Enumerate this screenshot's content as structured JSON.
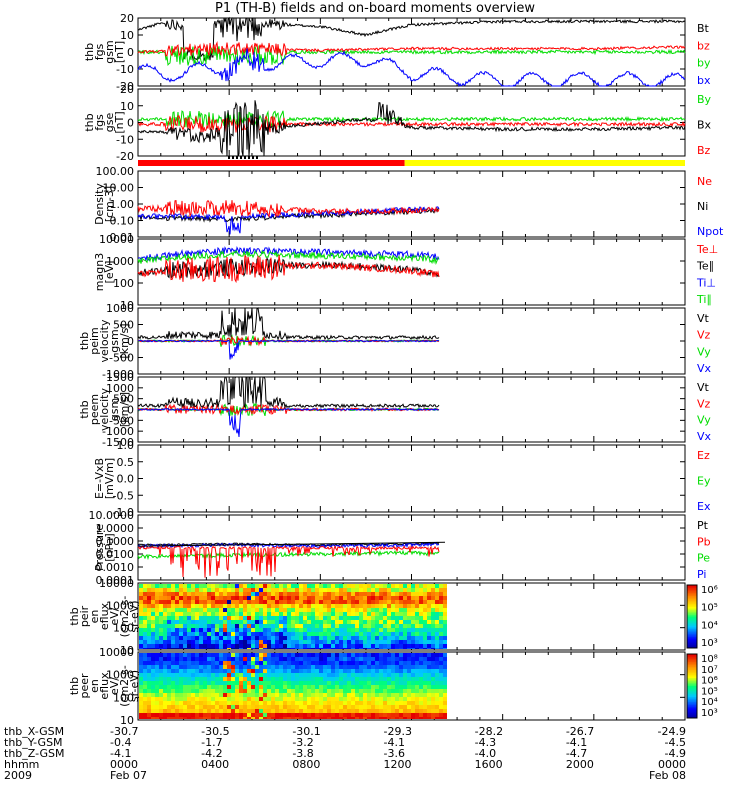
{
  "title": "P1 (TH-B) fields and on-board moments overview",
  "colors": {
    "black": "#000000",
    "red": "#ff0000",
    "green": "#00dd00",
    "blue": "#0000ff",
    "yellow": "#ffff00"
  },
  "panels": [
    {
      "ylabel": [
        "thb",
        "fgs",
        "gsm",
        "[nT]"
      ],
      "ticks": [
        "20",
        "10",
        "0",
        "-10",
        "-20"
      ],
      "log": false,
      "ymin": -20,
      "ymax": 20,
      "legend": [
        {
          "text": "Bt",
          "color": "black"
        },
        {
          "text": "bz",
          "color": "red"
        },
        {
          "text": "by",
          "color": "green"
        },
        {
          "text": "bx",
          "color": "blue"
        }
      ]
    },
    {
      "ylabel": [
        "thb",
        "fgs",
        "gse",
        "[nT]"
      ],
      "ticks": [
        "20",
        "10",
        "0",
        "-10",
        "-20"
      ],
      "log": false,
      "ymin": -20,
      "ymax": 20,
      "legend": [
        {
          "text": "By",
          "color": "green"
        },
        {
          "text": "Bx",
          "color": "black"
        },
        {
          "text": "Bz",
          "color": "red"
        }
      ]
    },
    {
      "ylabel": [
        "Density",
        "[cm-3]"
      ],
      "ticks": [
        "100.00",
        "10.00",
        "1.00",
        "0.10",
        "0.01"
      ],
      "log": true,
      "ymin": 0.01,
      "ymax": 100,
      "legend": [
        {
          "text": "Ne",
          "color": "red"
        },
        {
          "text": "Ni",
          "color": "black"
        },
        {
          "text": "Npot",
          "color": "blue"
        }
      ]
    },
    {
      "ylabel": [
        "magn3",
        "[eV]"
      ],
      "ticks": [
        "10000",
        "1000",
        "100",
        "10"
      ],
      "log": true,
      "ymin": 10,
      "ymax": 10000,
      "legend": [
        {
          "text": "Te⊥",
          "color": "red"
        },
        {
          "text": "Te∥",
          "color": "black"
        },
        {
          "text": "Ti⊥",
          "color": "blue"
        },
        {
          "text": "Ti∥",
          "color": "green"
        }
      ]
    },
    {
      "ylabel": [
        "thb",
        "peim",
        "velocity",
        "gsm",
        "[km/s]"
      ],
      "ticks": [
        "1000",
        "500",
        "0",
        "-500",
        "-1000"
      ],
      "log": false,
      "ymin": -1000,
      "ymax": 1000,
      "legend": [
        {
          "text": "Vt",
          "color": "black"
        },
        {
          "text": "Vz",
          "color": "red"
        },
        {
          "text": "Vy",
          "color": "green"
        },
        {
          "text": "Vx",
          "color": "blue"
        }
      ]
    },
    {
      "ylabel": [
        "thb",
        "peem",
        "velocity",
        "gsm",
        "[km/s]"
      ],
      "ticks": [
        "1500",
        "1000",
        "500",
        "0",
        "-500",
        "-1000",
        "-1500"
      ],
      "log": false,
      "ymin": -1500,
      "ymax": 1500,
      "legend": [
        {
          "text": "Vt",
          "color": "black"
        },
        {
          "text": "Vz",
          "color": "red"
        },
        {
          "text": "Vy",
          "color": "green"
        },
        {
          "text": "Vx",
          "color": "blue"
        }
      ]
    },
    {
      "ylabel": [
        "E=-VxB",
        "[mV/m]"
      ],
      "ticks": [
        "1.0",
        "0.5",
        "0.0",
        "-0.5",
        "-1.0"
      ],
      "log": false,
      "ymin": -1,
      "ymax": 1,
      "legend": [
        {
          "text": "Ez",
          "color": "red"
        },
        {
          "text": "Ey",
          "color": "green"
        },
        {
          "text": "Ex",
          "color": "blue"
        }
      ]
    },
    {
      "ylabel": [
        "Pressure",
        "[nPa]"
      ],
      "ticks": [
        "10.0000",
        "1.0000",
        "0.1000",
        "0.0100",
        "0.0010",
        "0.0001"
      ],
      "log": true,
      "ymin": 0.0001,
      "ymax": 10,
      "legend": [
        {
          "text": "Pt",
          "color": "black"
        },
        {
          "text": "Pb",
          "color": "red"
        },
        {
          "text": "Pe",
          "color": "green"
        },
        {
          "text": "Pi",
          "color": "blue"
        }
      ]
    },
    {
      "ylabel": [
        "thb",
        "peir",
        "en",
        "eflux",
        "eV/",
        "(cm2-s-",
        "sr-eV)"
      ],
      "ticks": [
        "10000",
        "1000",
        "100",
        "10"
      ],
      "log": true,
      "ymin": 10,
      "ymax": 20000,
      "colorbar": [
        "10⁶",
        "10⁵",
        "10⁴",
        "10³"
      ]
    },
    {
      "ylabel": [
        "thb",
        "peer",
        "en",
        "eflux",
        "eV/",
        "(cm2-s-",
        "sr-eV)"
      ],
      "ticks": [
        "10000",
        "1000",
        "100",
        "10"
      ],
      "log": true,
      "ymin": 10,
      "ymax": 20000,
      "colorbar": [
        "10⁸",
        "10⁷",
        "10⁶",
        "10⁵",
        "10⁴",
        "10³"
      ]
    }
  ],
  "footer": {
    "labels": [
      "thb_X-GSM",
      "thb_Y-GSM",
      "thb_Z-GSM",
      "hhmm",
      "2009"
    ],
    "columns": [
      [
        "-30.7",
        "-0.4",
        "-4.1",
        "0000",
        "Feb 07"
      ],
      [
        "-30.5",
        "-1.7",
        "-4.2",
        "0400",
        ""
      ],
      [
        "-30.1",
        "-3.2",
        "-3.8",
        "0800",
        ""
      ],
      [
        "-29.3",
        "-4.1",
        "-3.6",
        "1200",
        ""
      ],
      [
        "-28.2",
        "-4.3",
        "-4.0",
        "1600",
        ""
      ],
      [
        "-26.7",
        "-4.1",
        "-4.7",
        "2000",
        ""
      ],
      [
        "-24.9",
        "-4.5",
        "-4.9",
        "0000",
        "Feb 08"
      ]
    ]
  },
  "chart_data": {
    "type": "line",
    "title": "P1 (TH-B) fields and on-board moments overview",
    "x_hours": [
      0,
      4,
      8,
      12,
      16,
      20,
      24
    ],
    "x_tick_labels": [
      "0000",
      "0400",
      "0800",
      "1200",
      "1600",
      "2000",
      "0000"
    ],
    "data_end_hour": 13.2,
    "mode_bar": [
      {
        "start": 0,
        "end": 11.7,
        "color": "red"
      },
      {
        "start": 11.7,
        "end": 24,
        "color": "yellow"
      }
    ],
    "series_overview": [
      {
        "panel": 0,
        "name": "Bt",
        "x": [
          0,
          1,
          3,
          5,
          8,
          10,
          12,
          14,
          16,
          20,
          24
        ],
        "y": [
          13,
          17,
          15,
          17,
          15,
          10,
          16,
          17,
          18,
          18,
          18
        ]
      },
      {
        "panel": 0,
        "name": "bx",
        "x": [
          0,
          1,
          3,
          5,
          8,
          10,
          12,
          14,
          16,
          20,
          24
        ],
        "y": [
          -10,
          -14,
          -10,
          -7,
          -5,
          -4,
          -12,
          -15,
          -17,
          -16,
          -17
        ]
      },
      {
        "panel": 0,
        "name": "bz",
        "x": [
          0,
          4,
          8,
          12,
          16,
          20,
          24
        ],
        "y": [
          0,
          2,
          1,
          2,
          2,
          2,
          3
        ]
      },
      {
        "panel": 1,
        "name": "Bx",
        "x": [
          0,
          3,
          6,
          10,
          12,
          16,
          20,
          24
        ],
        "y": [
          -5,
          -8,
          -3,
          2,
          -3,
          -4,
          -4,
          -3
        ]
      },
      {
        "panel": 2,
        "name": "Ni",
        "x": [
          0,
          4,
          8,
          12,
          13.2
        ],
        "y": [
          0.15,
          0.12,
          0.2,
          0.35,
          0.4
        ]
      },
      {
        "panel": 2,
        "name": "Ne",
        "x": [
          0,
          4,
          8,
          12,
          13.2
        ],
        "y": [
          0.5,
          0.6,
          0.35,
          0.4,
          0.45
        ]
      },
      {
        "panel": 3,
        "name": "Ti⊥",
        "x": [
          0,
          4,
          8,
          12,
          13.2
        ],
        "y": [
          1300,
          3000,
          2500,
          2000,
          1500
        ]
      },
      {
        "panel": 3,
        "name": "Te∥",
        "x": [
          0,
          4,
          8,
          12,
          13.2
        ],
        "y": [
          300,
          500,
          700,
          400,
          250
        ]
      },
      {
        "panel": 7,
        "name": "Pt",
        "x": [
          0,
          4,
          8,
          12,
          13.2
        ],
        "y": [
          0.05,
          0.06,
          0.05,
          0.06,
          0.07
        ]
      },
      {
        "panel": 7,
        "name": "Pi",
        "x": [
          0,
          4,
          8,
          12,
          13.2
        ],
        "y": [
          0.04,
          0.05,
          0.04,
          0.05,
          0.06
        ]
      },
      {
        "panel": 7,
        "name": "Pe",
        "x": [
          0,
          4,
          8,
          12,
          13.2
        ],
        "y": [
          0.006,
          0.008,
          0.01,
          0.012,
          0.01
        ]
      }
    ]
  }
}
